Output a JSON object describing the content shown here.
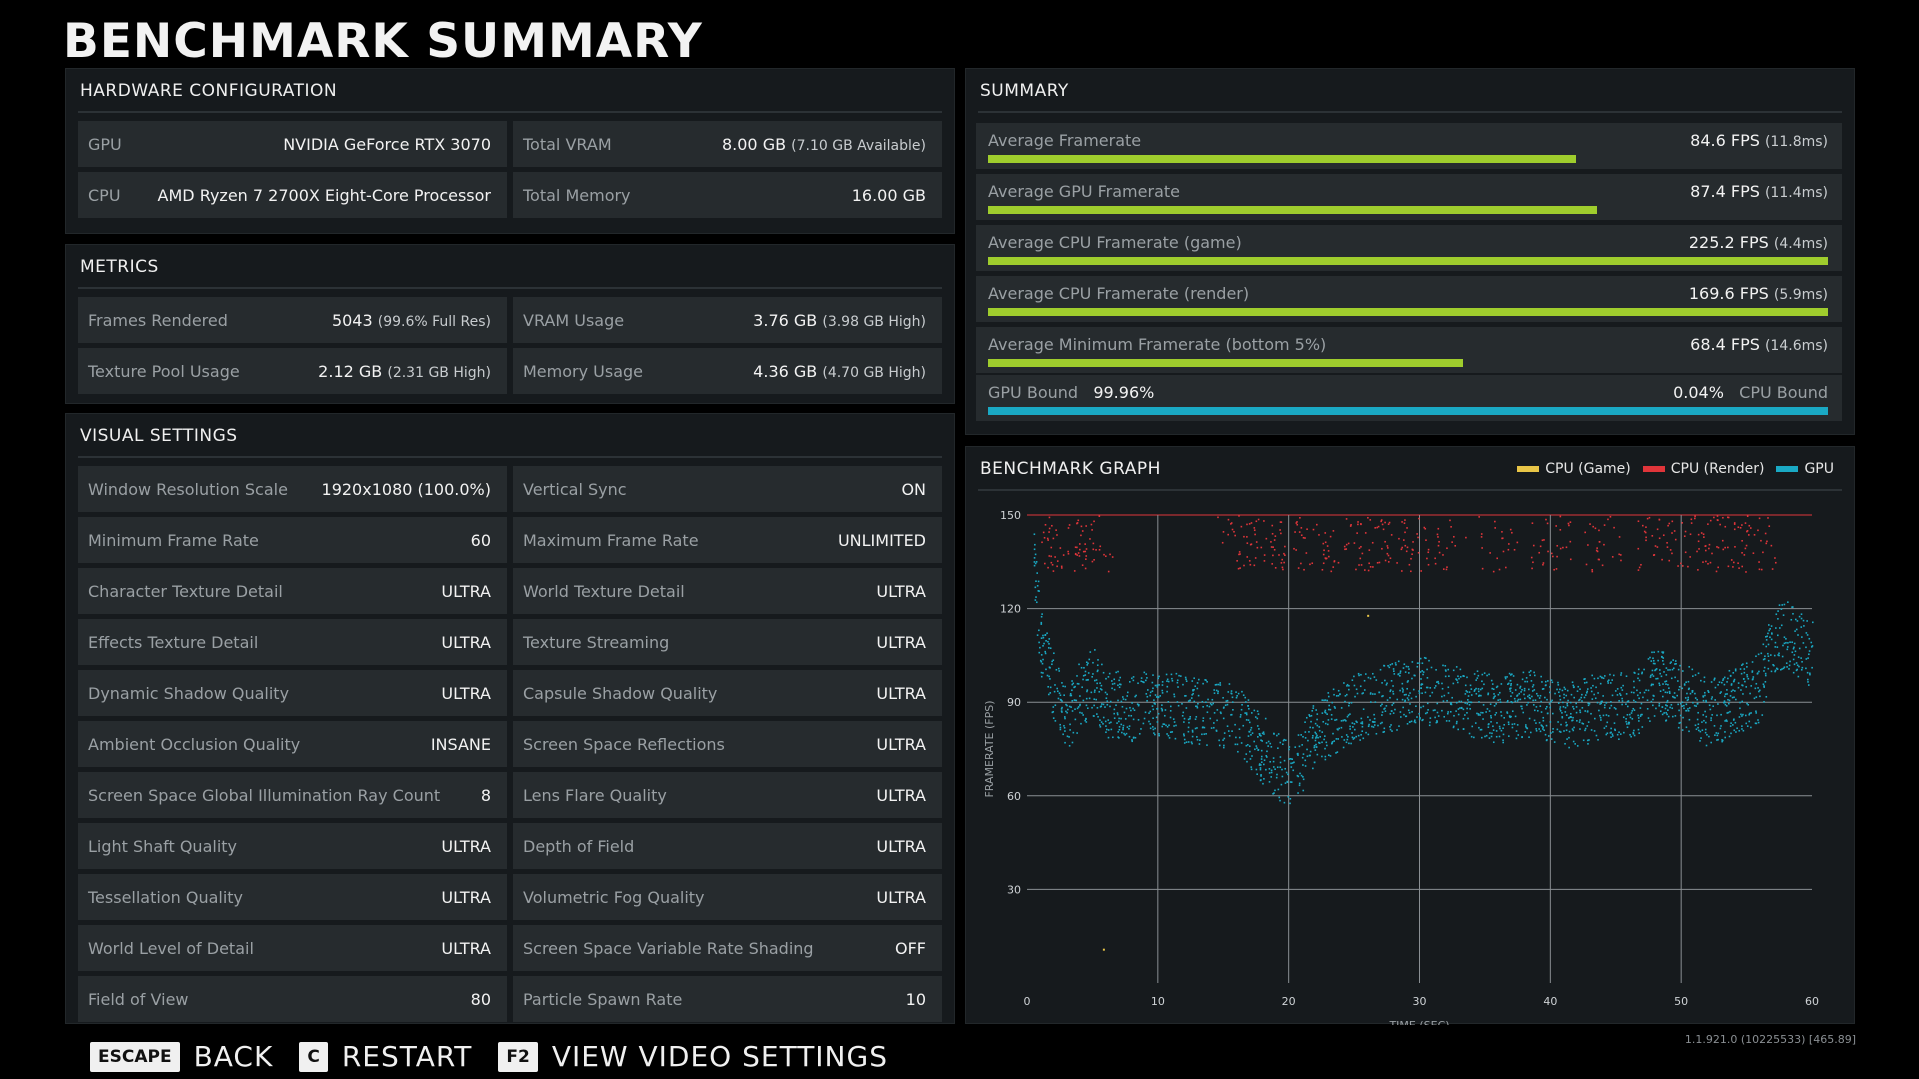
{
  "page_title": "BENCHMARK SUMMARY",
  "hardware": {
    "title": "HARDWARE CONFIGURATION",
    "rows": [
      {
        "label": "GPU",
        "value": "NVIDIA GeForce RTX 3070",
        "sub": ""
      },
      {
        "label": "Total VRAM",
        "value": "8.00 GB",
        "sub": "(7.10 GB Available)"
      },
      {
        "label": "CPU",
        "value": "AMD Ryzen 7 2700X Eight-Core Processor",
        "sub": ""
      },
      {
        "label": "Total Memory",
        "value": "16.00 GB",
        "sub": ""
      }
    ]
  },
  "metrics": {
    "title": "METRICS",
    "rows": [
      {
        "label": "Frames Rendered",
        "value": "5043",
        "sub": "(99.6% Full Res)"
      },
      {
        "label": "VRAM Usage",
        "value": "3.76 GB",
        "sub": "(3.98 GB High)"
      },
      {
        "label": "Texture Pool Usage",
        "value": "2.12 GB",
        "sub": "(2.31 GB High)"
      },
      {
        "label": "Memory Usage",
        "value": "4.36 GB",
        "sub": "(4.70 GB High)"
      }
    ]
  },
  "visual": {
    "title": "VISUAL SETTINGS",
    "rows": [
      {
        "label": "Window Resolution Scale",
        "value": "1920x1080 (100.0%)"
      },
      {
        "label": "Vertical Sync",
        "value": "ON"
      },
      {
        "label": "Minimum Frame Rate",
        "value": "60"
      },
      {
        "label": "Maximum Frame Rate",
        "value": "UNLIMITED"
      },
      {
        "label": "Character Texture Detail",
        "value": "ULTRA"
      },
      {
        "label": "World Texture Detail",
        "value": "ULTRA"
      },
      {
        "label": "Effects Texture Detail",
        "value": "ULTRA"
      },
      {
        "label": "Texture Streaming",
        "value": "ULTRA"
      },
      {
        "label": "Dynamic Shadow Quality",
        "value": "ULTRA"
      },
      {
        "label": "Capsule Shadow Quality",
        "value": "ULTRA"
      },
      {
        "label": "Ambient Occlusion Quality",
        "value": "INSANE"
      },
      {
        "label": "Screen Space Reflections",
        "value": "ULTRA"
      },
      {
        "label": "Screen Space Global Illumination Ray Count",
        "value": "8"
      },
      {
        "label": "Lens Flare Quality",
        "value": "ULTRA"
      },
      {
        "label": "Light Shaft Quality",
        "value": "ULTRA"
      },
      {
        "label": "Depth of Field",
        "value": "ULTRA"
      },
      {
        "label": "Tessellation Quality",
        "value": "ULTRA"
      },
      {
        "label": "Volumetric Fog Quality",
        "value": "ULTRA"
      },
      {
        "label": "World Level of Detail",
        "value": "ULTRA"
      },
      {
        "label": "Screen Space Variable Rate Shading",
        "value": "OFF"
      },
      {
        "label": "Field of View",
        "value": "80"
      },
      {
        "label": "Particle Spawn Rate",
        "value": "10"
      }
    ]
  },
  "summary": {
    "title": "SUMMARY",
    "rows": [
      {
        "label": "Average Framerate",
        "value": "84.6 FPS",
        "sub": "(11.8ms)",
        "fill": 0.7
      },
      {
        "label": "Average GPU Framerate",
        "value": "87.4 FPS",
        "sub": "(11.4ms)",
        "fill": 0.725
      },
      {
        "label": "Average CPU Framerate (game)",
        "value": "225.2 FPS",
        "sub": "(4.4ms)",
        "fill": 1.0
      },
      {
        "label": "Average CPU Framerate (render)",
        "value": "169.6 FPS",
        "sub": "(5.9ms)",
        "fill": 1.0
      },
      {
        "label": "Average Minimum Framerate (bottom 5%)",
        "value": "68.4 FPS",
        "sub": "(14.6ms)",
        "fill": 0.565
      }
    ],
    "bound": {
      "gpu_label": "GPU Bound",
      "gpu_value": "99.96%",
      "cpu_label": "CPU Bound",
      "cpu_value": "0.04%",
      "gpu_fraction": 0.9996
    }
  },
  "graph": {
    "title": "BENCHMARK GRAPH",
    "legend": [
      {
        "name": "CPU (Game)",
        "color": "#e8c547"
      },
      {
        "name": "CPU (Render)",
        "color": "#e0353a"
      },
      {
        "name": "GPU",
        "color": "#1aa9c4"
      }
    ]
  },
  "chart_data": {
    "type": "scatter",
    "xlabel": "TIME (SEC)",
    "ylabel": "FRAMERATE (FPS)",
    "xlim": [
      0,
      60
    ],
    "ylim": [
      0,
      150
    ],
    "xticks": [
      0,
      10,
      20,
      30,
      40,
      50,
      60
    ],
    "yticks": [
      30,
      60,
      90,
      120,
      150
    ],
    "grid": true,
    "series": [
      {
        "name": "GPU",
        "color": "#1aa9c4",
        "x": [
          0.5,
          1,
          2,
          3,
          4,
          5,
          6,
          8,
          10,
          12,
          14,
          16,
          17,
          18,
          19,
          20,
          21,
          22,
          24,
          26,
          28,
          30,
          32,
          34,
          36,
          38,
          40,
          42,
          44,
          46,
          48,
          50,
          52,
          54,
          56,
          57,
          58,
          59,
          60
        ],
        "y": [
          135,
          110,
          95,
          85,
          92,
          97,
          90,
          88,
          90,
          88,
          87,
          85,
          80,
          75,
          70,
          66,
          72,
          80,
          86,
          90,
          92,
          95,
          91,
          90,
          88,
          90,
          88,
          86,
          90,
          88,
          97,
          92,
          87,
          90,
          95,
          110,
          112,
          108,
          105
        ]
      },
      {
        "name": "CPU (Render)",
        "color": "#e0353a",
        "x": [
          2,
          3,
          5,
          16,
          17,
          18,
          20,
          22,
          24,
          26,
          28,
          30,
          32,
          36,
          40,
          44,
          48,
          51,
          53,
          55,
          56
        ],
        "y": [
          147,
          140,
          132,
          145,
          140,
          135,
          142,
          138,
          128,
          140,
          145,
          143,
          146,
          147,
          148,
          147,
          143,
          140,
          148,
          146,
          135
        ]
      },
      {
        "name": "CPU (Game)",
        "color": "#e8c547",
        "x": [
          5.8,
          26
        ],
        "y": [
          11,
          118
        ]
      }
    ]
  },
  "footer": {
    "keys": [
      {
        "key": "ESCAPE",
        "label": "BACK"
      },
      {
        "key": "C",
        "label": "RESTART"
      },
      {
        "key": "F2",
        "label": "VIEW VIDEO SETTINGS"
      }
    ],
    "version": "1.1.921.0 (10225533) [465.89]"
  }
}
